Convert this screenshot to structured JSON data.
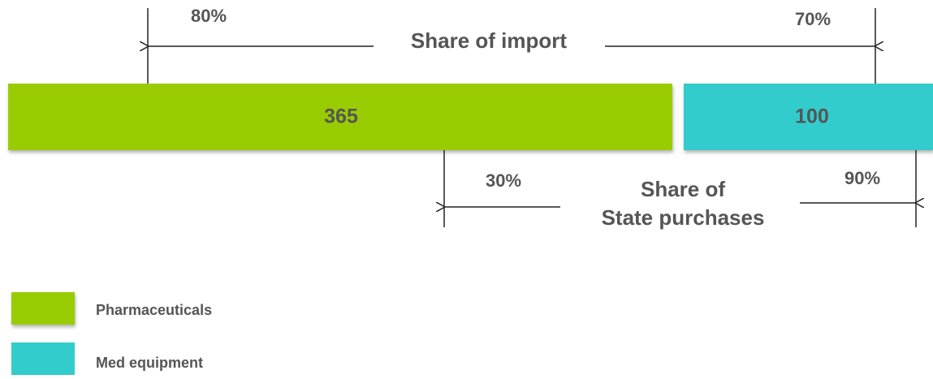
{
  "bars": [
    {
      "label": "365",
      "color": "#99cc00"
    },
    {
      "label": "100",
      "color": "#33cccc"
    }
  ],
  "import_share": {
    "label": "Share of import",
    "left": "80%",
    "right": "70%"
  },
  "state_share": {
    "label": [
      "Share of",
      "State purchases"
    ],
    "left": "30%",
    "right": "90%"
  },
  "legend": [
    {
      "name": "Pharmaceuticals",
      "color": "#99cc00"
    },
    {
      "name": "Med equipment",
      "color": "#33cccc"
    }
  ]
}
